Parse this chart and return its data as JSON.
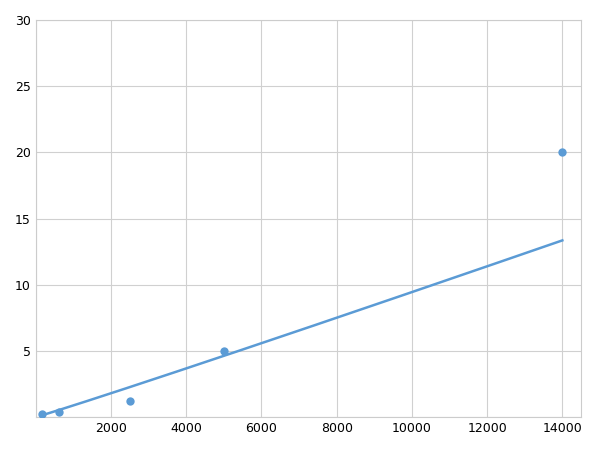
{
  "x_points": [
    156,
    625,
    2500,
    5000,
    14000
  ],
  "y_points": [
    0.2,
    0.4,
    1.25,
    5.0,
    20.0
  ],
  "line_color": "#5b9bd5",
  "marker_color": "#5b9bd5",
  "marker_size": 6,
  "line_width": 1.8,
  "xlim": [
    0,
    14500
  ],
  "ylim": [
    0,
    30
  ],
  "xticks": [
    0,
    2000,
    4000,
    6000,
    8000,
    10000,
    12000,
    14000
  ],
  "yticks": [
    0,
    5,
    10,
    15,
    20,
    25,
    30
  ],
  "grid_color": "#d0d0d0",
  "background_color": "#ffffff",
  "figsize": [
    6.0,
    4.5
  ],
  "dpi": 100
}
